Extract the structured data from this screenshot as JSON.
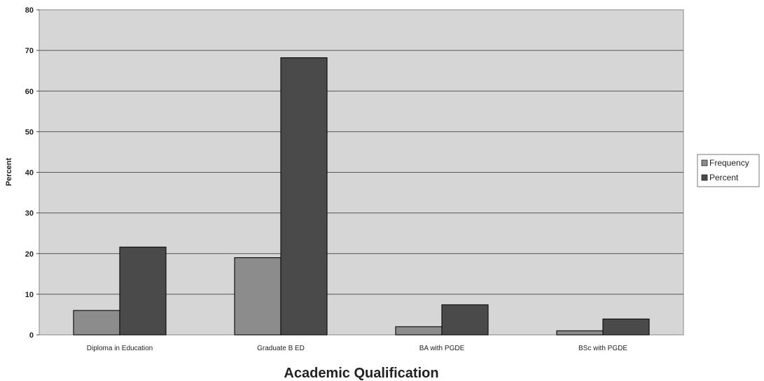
{
  "chart_data": {
    "type": "bar",
    "categories": [
      "Diploma in Education",
      "Graduate B ED",
      "BA with PGDE",
      "BSc with PGDE"
    ],
    "series": [
      {
        "name": "Frequency",
        "values": [
          6,
          19,
          2,
          1
        ],
        "color": "#8c8c8c"
      },
      {
        "name": "Percent",
        "values": [
          21.6,
          68.2,
          7.4,
          3.9
        ],
        "color": "#4a4a4a"
      }
    ],
    "title": "",
    "xlabel": "Academic Qualification",
    "ylabel": "Percent",
    "ylim": [
      0,
      80
    ],
    "yticks": [
      0,
      10,
      20,
      30,
      40,
      50,
      60,
      70,
      80
    ],
    "grid": true,
    "legend": "right",
    "plot_background": "#d6d6d6"
  }
}
